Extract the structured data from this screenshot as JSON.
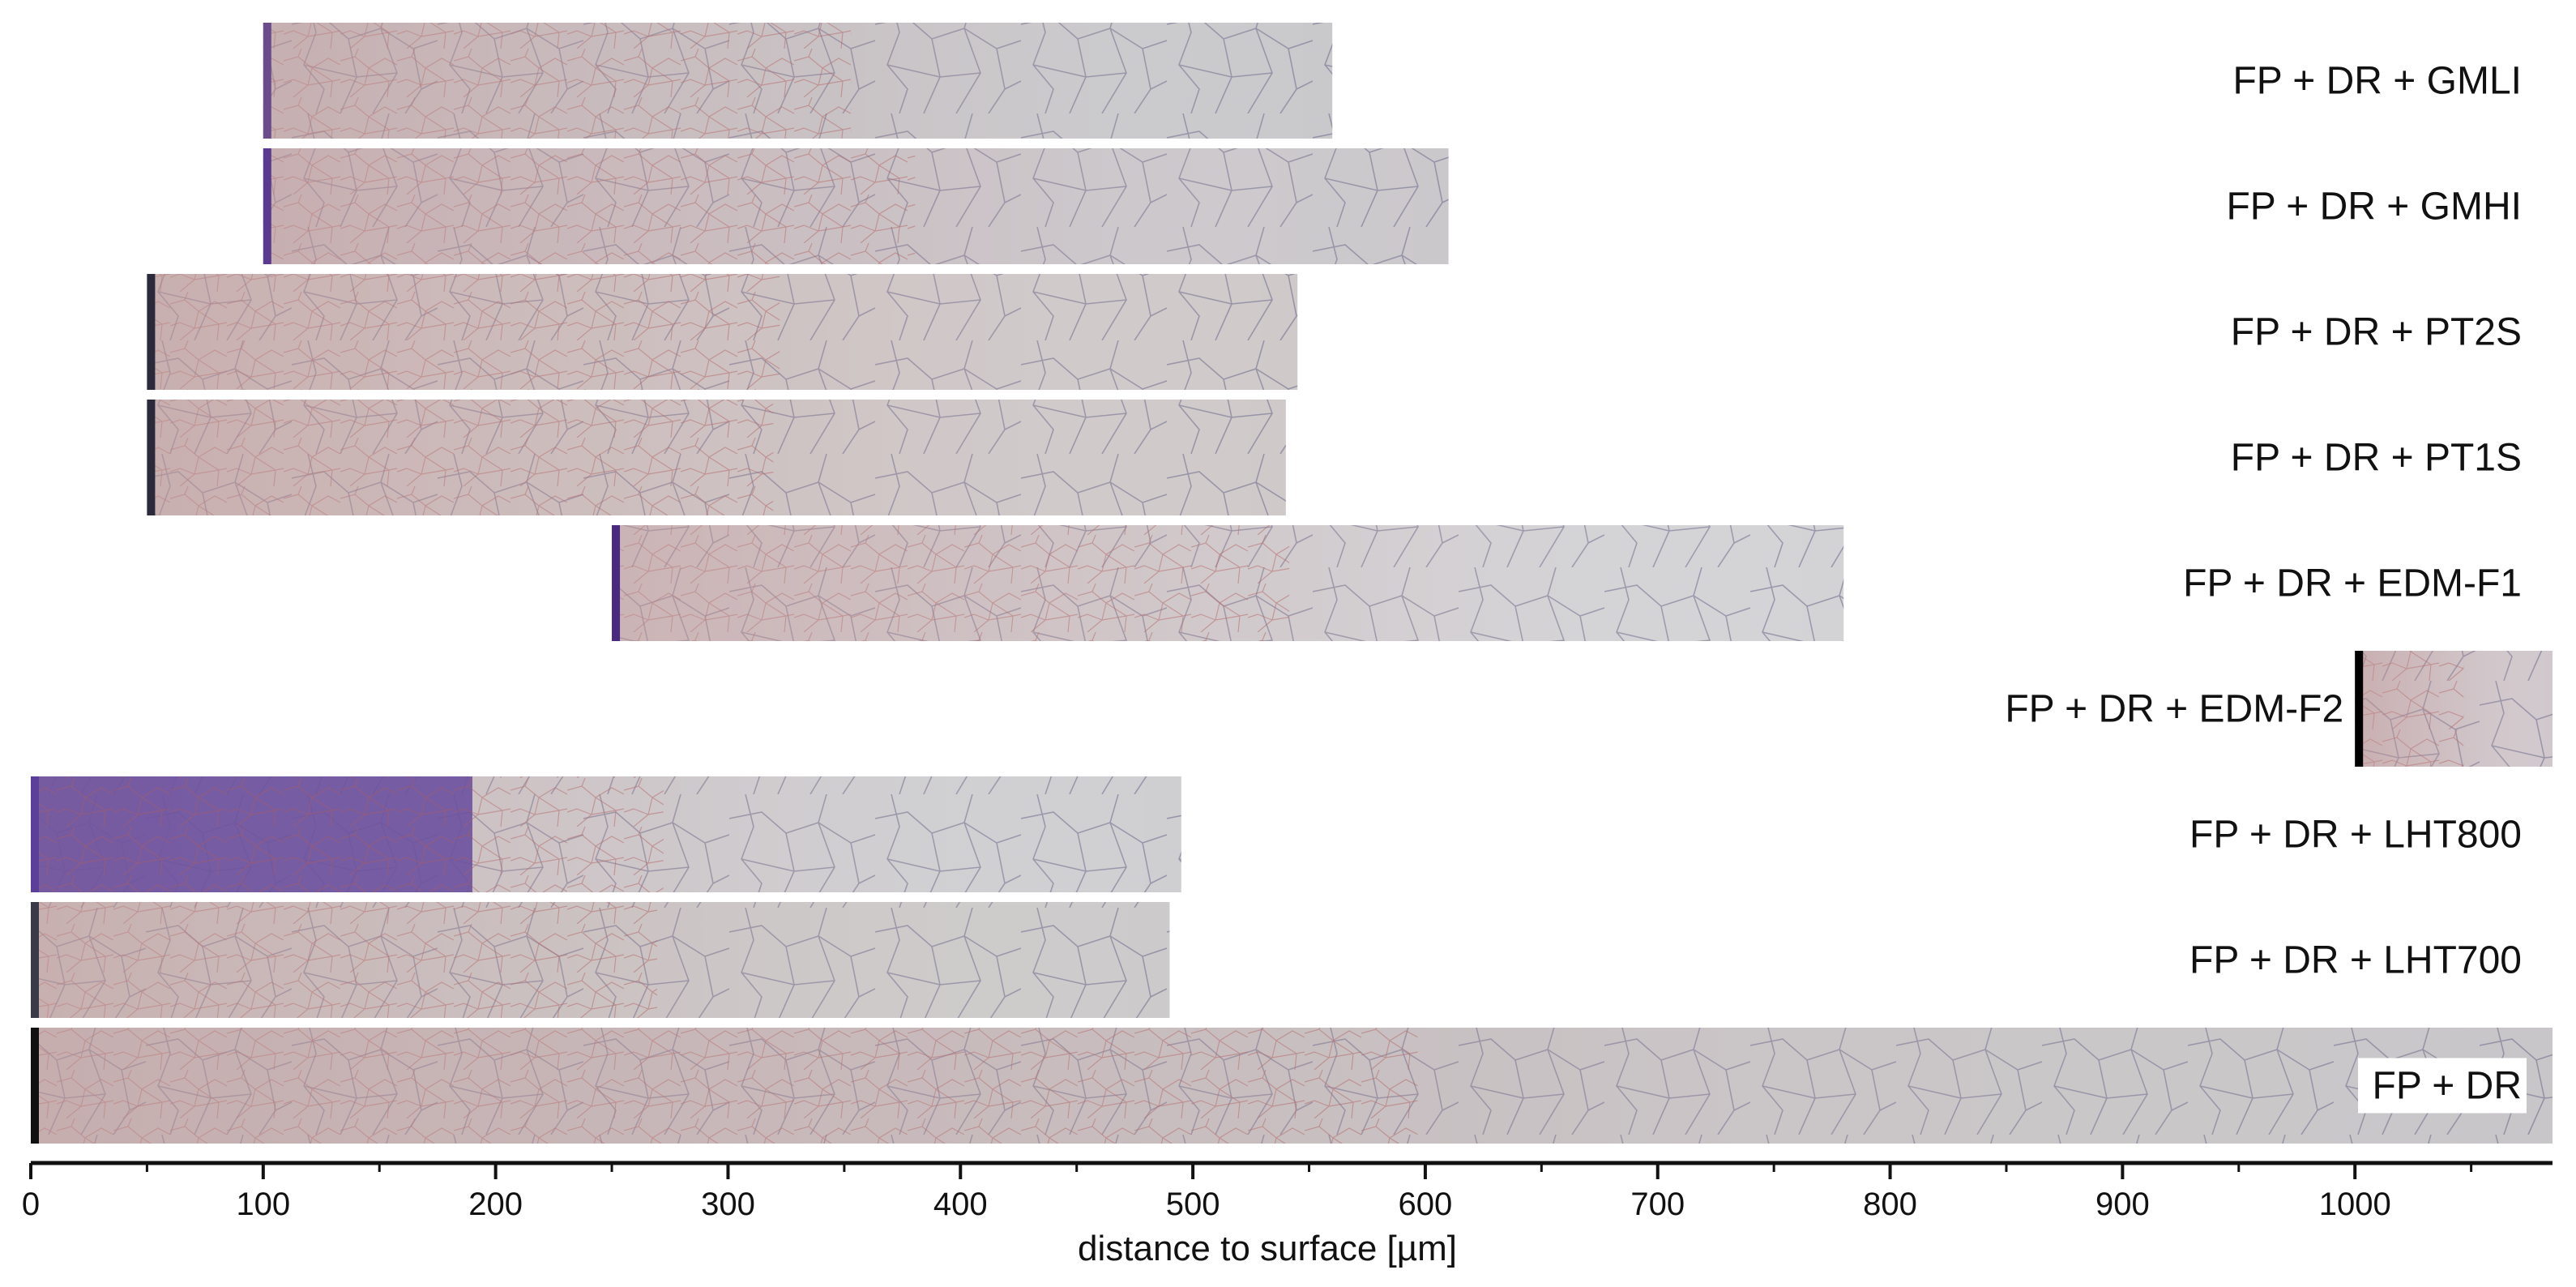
{
  "figure": {
    "strips": [
      {
        "label": "FP + DR + GMLI",
        "start": 100,
        "end": 560,
        "edge_color": "#6a4c8c",
        "tint": "#c9c9cc"
      },
      {
        "label": "FP + DR + GMHI",
        "start": 100,
        "end": 610,
        "edge_color": "#5a3a90",
        "tint": "#cbc8cc"
      },
      {
        "label": "FP + DR + PT2S",
        "start": 50,
        "end": 545,
        "edge_color": "#2a2a3a",
        "tint": "#cfc9c9"
      },
      {
        "label": "FP + DR + PT1S",
        "start": 50,
        "end": 540,
        "edge_color": "#2a2a3a",
        "tint": "#cfc9c9"
      },
      {
        "label": "FP + DR + EDM-F1",
        "start": 250,
        "end": 780,
        "edge_color": "#4a2a80",
        "tint": "#d3d3d6"
      },
      {
        "label": "FP + DR + EDM-F2",
        "start": 1000,
        "end": 1085,
        "edge_color": "#000000",
        "tint": "#d0c8cc"
      },
      {
        "label": "FP + DR + LHT800",
        "start": 0,
        "end": 495,
        "edge_color": "#5b3f9a",
        "tint": "#cfcfd2",
        "dark_zone_end": 190,
        "dark_zone_color": "#6a4f9e"
      },
      {
        "label": "FP + DR + LHT700",
        "start": 0,
        "end": 490,
        "edge_color": "#3a3a4a",
        "tint": "#cccaca"
      },
      {
        "label": "FP + DR",
        "start": 0,
        "end": 1085,
        "edge_color": "#111111",
        "tint": "#c8c6c8"
      }
    ]
  },
  "chart_data": {
    "type": "image-strips",
    "x_axis": {
      "label": "distance to  surface [µm]",
      "min": 0,
      "max": 1085,
      "ticks": [
        0,
        100,
        200,
        300,
        400,
        500,
        600,
        700,
        800,
        900,
        1000
      ]
    }
  }
}
